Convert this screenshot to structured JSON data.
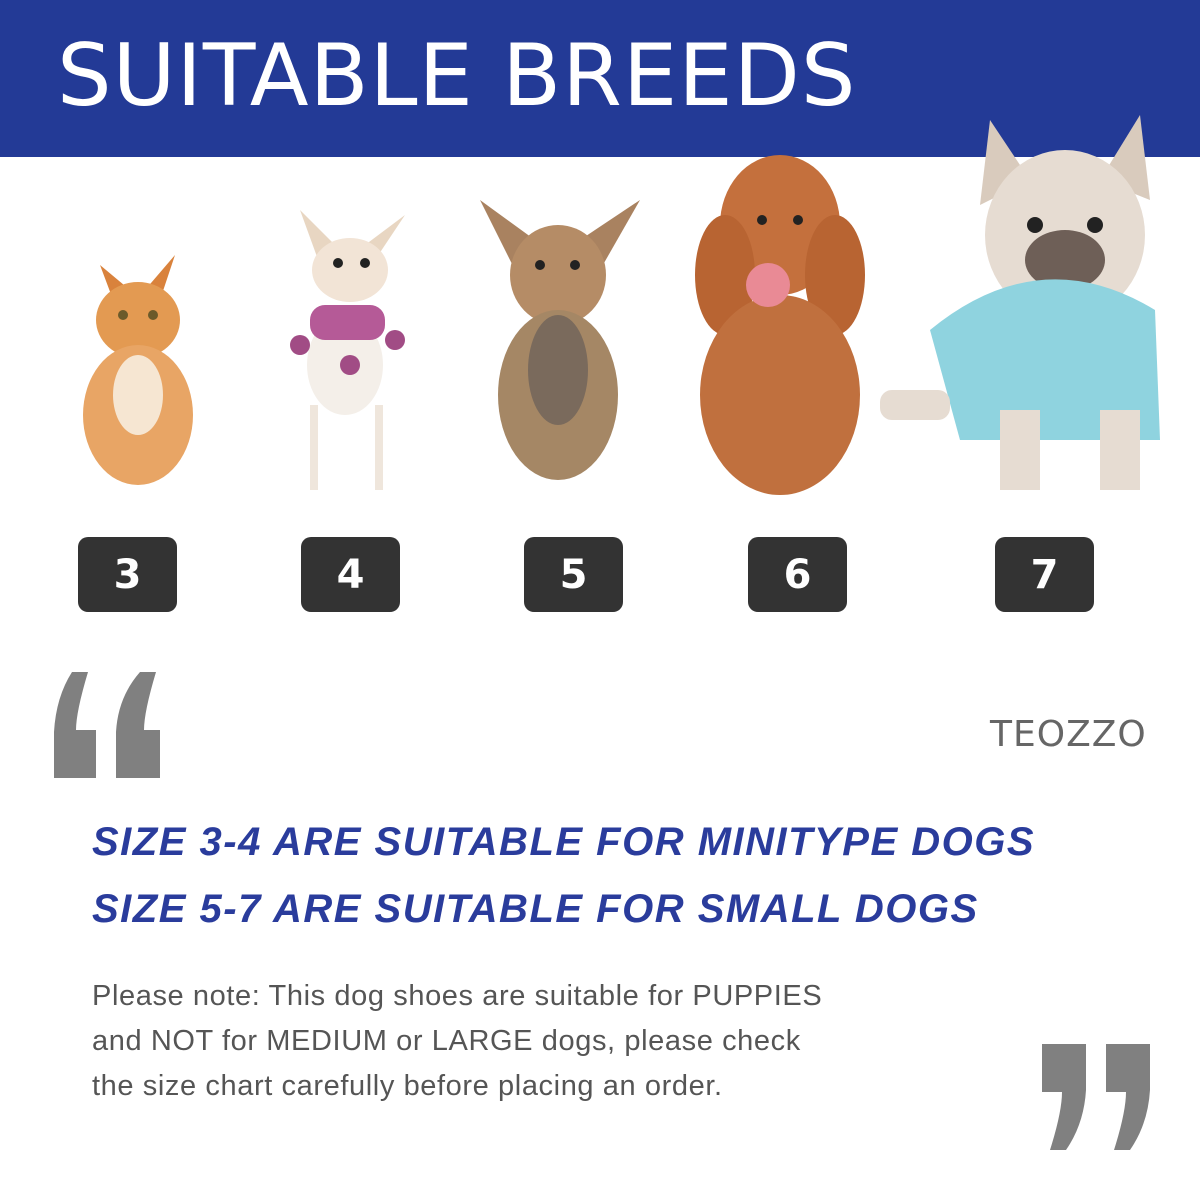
{
  "header": {
    "title": "SUITABLE BREEDS"
  },
  "pets": [
    {
      "kind": "kitten",
      "size": "3"
    },
    {
      "kind": "chihuahua",
      "size": "4"
    },
    {
      "kind": "yorkshire-terrier",
      "size": "5"
    },
    {
      "kind": "poodle",
      "size": "6"
    },
    {
      "kind": "french-bulldog",
      "size": "7"
    }
  ],
  "brand": {
    "logo": "TEOZZO"
  },
  "headline": {
    "line1": "SIZE 3-4 ARE SUITABLE FOR MINITYPE DOGS",
    "line2": "SIZE 5-7 ARE SUITABLE FOR SMALL DOGS"
  },
  "note": {
    "line1": "Please note: This dog shoes are suitable for PUPPIES",
    "line2": "and NOT for MEDIUM or LARGE dogs, please check",
    "line3": "the size chart carefully before placing an order."
  },
  "icons": {
    "open_quote": "open-quote-icon",
    "close_quote": "close-quote-icon"
  },
  "colors": {
    "brand": "#233a96",
    "accent": "#2a3c9c",
    "badge": "#333333",
    "quote": "#808080"
  }
}
